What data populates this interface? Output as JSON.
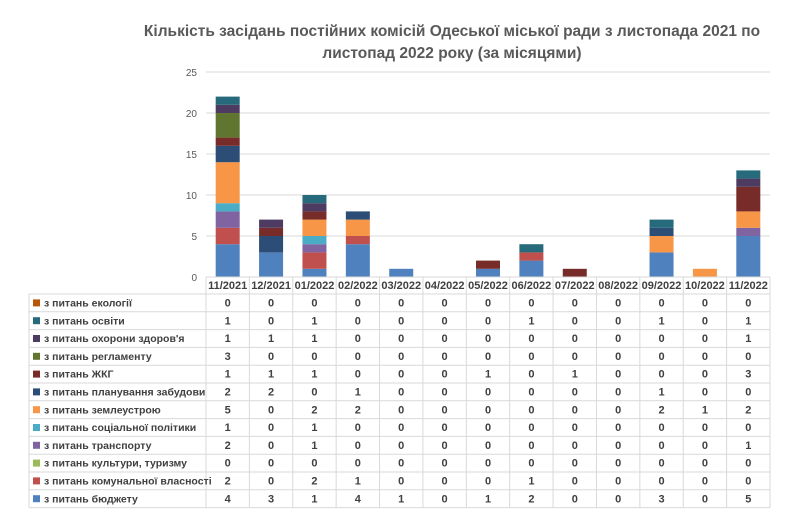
{
  "chart_data": {
    "type": "bar",
    "stacked": true,
    "title": "Кількість засідань постійних комісій Одеської міської ради  з листопада 2021 по листопад 2022 року (за місяцями)",
    "title_lines": [
      "Кількість засідань постійних комісій Одеської міської ради  з листопада 2021 по",
      "листопад 2022 року (за місяцями)"
    ],
    "xlabel": "",
    "ylabel": "",
    "ylim": [
      0,
      25
    ],
    "yticks": [
      0,
      5,
      10,
      15,
      20,
      25
    ],
    "grid": true,
    "legend": "data-table",
    "categories": [
      "11/2021",
      "12/2021",
      "01/2022",
      "02/2022",
      "03/2022",
      "04/2022",
      "05/2022",
      "06/2022",
      "07/2022",
      "08/2022",
      "09/2022",
      "10/2022",
      "11/2022"
    ],
    "series": [
      {
        "name": "з питань бюджету",
        "color": "#4e81bd",
        "values": [
          4,
          3,
          1,
          4,
          1,
          0,
          1,
          2,
          0,
          0,
          3,
          0,
          5
        ]
      },
      {
        "name": "з питань комунальної власності",
        "color": "#c0504d",
        "values": [
          2,
          0,
          2,
          1,
          0,
          0,
          0,
          1,
          0,
          0,
          0,
          0,
          0
        ]
      },
      {
        "name": "з питань культури, туризму",
        "color": "#9bbb59",
        "values": [
          0,
          0,
          0,
          0,
          0,
          0,
          0,
          0,
          0,
          0,
          0,
          0,
          0
        ]
      },
      {
        "name": "з питань транспорту",
        "color": "#8064a2",
        "values": [
          2,
          0,
          1,
          0,
          0,
          0,
          0,
          0,
          0,
          0,
          0,
          0,
          1
        ]
      },
      {
        "name": "з питань соціальної політики",
        "color": "#4bacc6",
        "values": [
          1,
          0,
          1,
          0,
          0,
          0,
          0,
          0,
          0,
          0,
          0,
          0,
          0
        ]
      },
      {
        "name": "з питань землеустрою",
        "color": "#f79646",
        "values": [
          5,
          0,
          2,
          2,
          0,
          0,
          0,
          0,
          0,
          0,
          2,
          1,
          2
        ]
      },
      {
        "name": "з питань планування забудови",
        "color": "#2c4d75",
        "values": [
          2,
          2,
          0,
          1,
          0,
          0,
          0,
          0,
          0,
          0,
          1,
          0,
          0
        ]
      },
      {
        "name": "з питань ЖКГ",
        "color": "#772c2a",
        "values": [
          1,
          1,
          1,
          0,
          0,
          0,
          1,
          0,
          1,
          0,
          0,
          0,
          3
        ]
      },
      {
        "name": "з питань регламенту",
        "color": "#5f7530",
        "values": [
          3,
          0,
          0,
          0,
          0,
          0,
          0,
          0,
          0,
          0,
          0,
          0,
          0
        ]
      },
      {
        "name": "з питань охорони здоров'я",
        "color": "#4d3b62",
        "values": [
          1,
          1,
          1,
          0,
          0,
          0,
          0,
          0,
          0,
          0,
          0,
          0,
          1
        ]
      },
      {
        "name": "з питань освіти",
        "color": "#276a7c",
        "values": [
          1,
          0,
          1,
          0,
          0,
          0,
          0,
          1,
          0,
          0,
          1,
          0,
          1
        ]
      },
      {
        "name": "з питань екології",
        "color": "#b65708",
        "values": [
          0,
          0,
          0,
          0,
          0,
          0,
          0,
          0,
          0,
          0,
          0,
          0,
          0
        ]
      }
    ]
  }
}
